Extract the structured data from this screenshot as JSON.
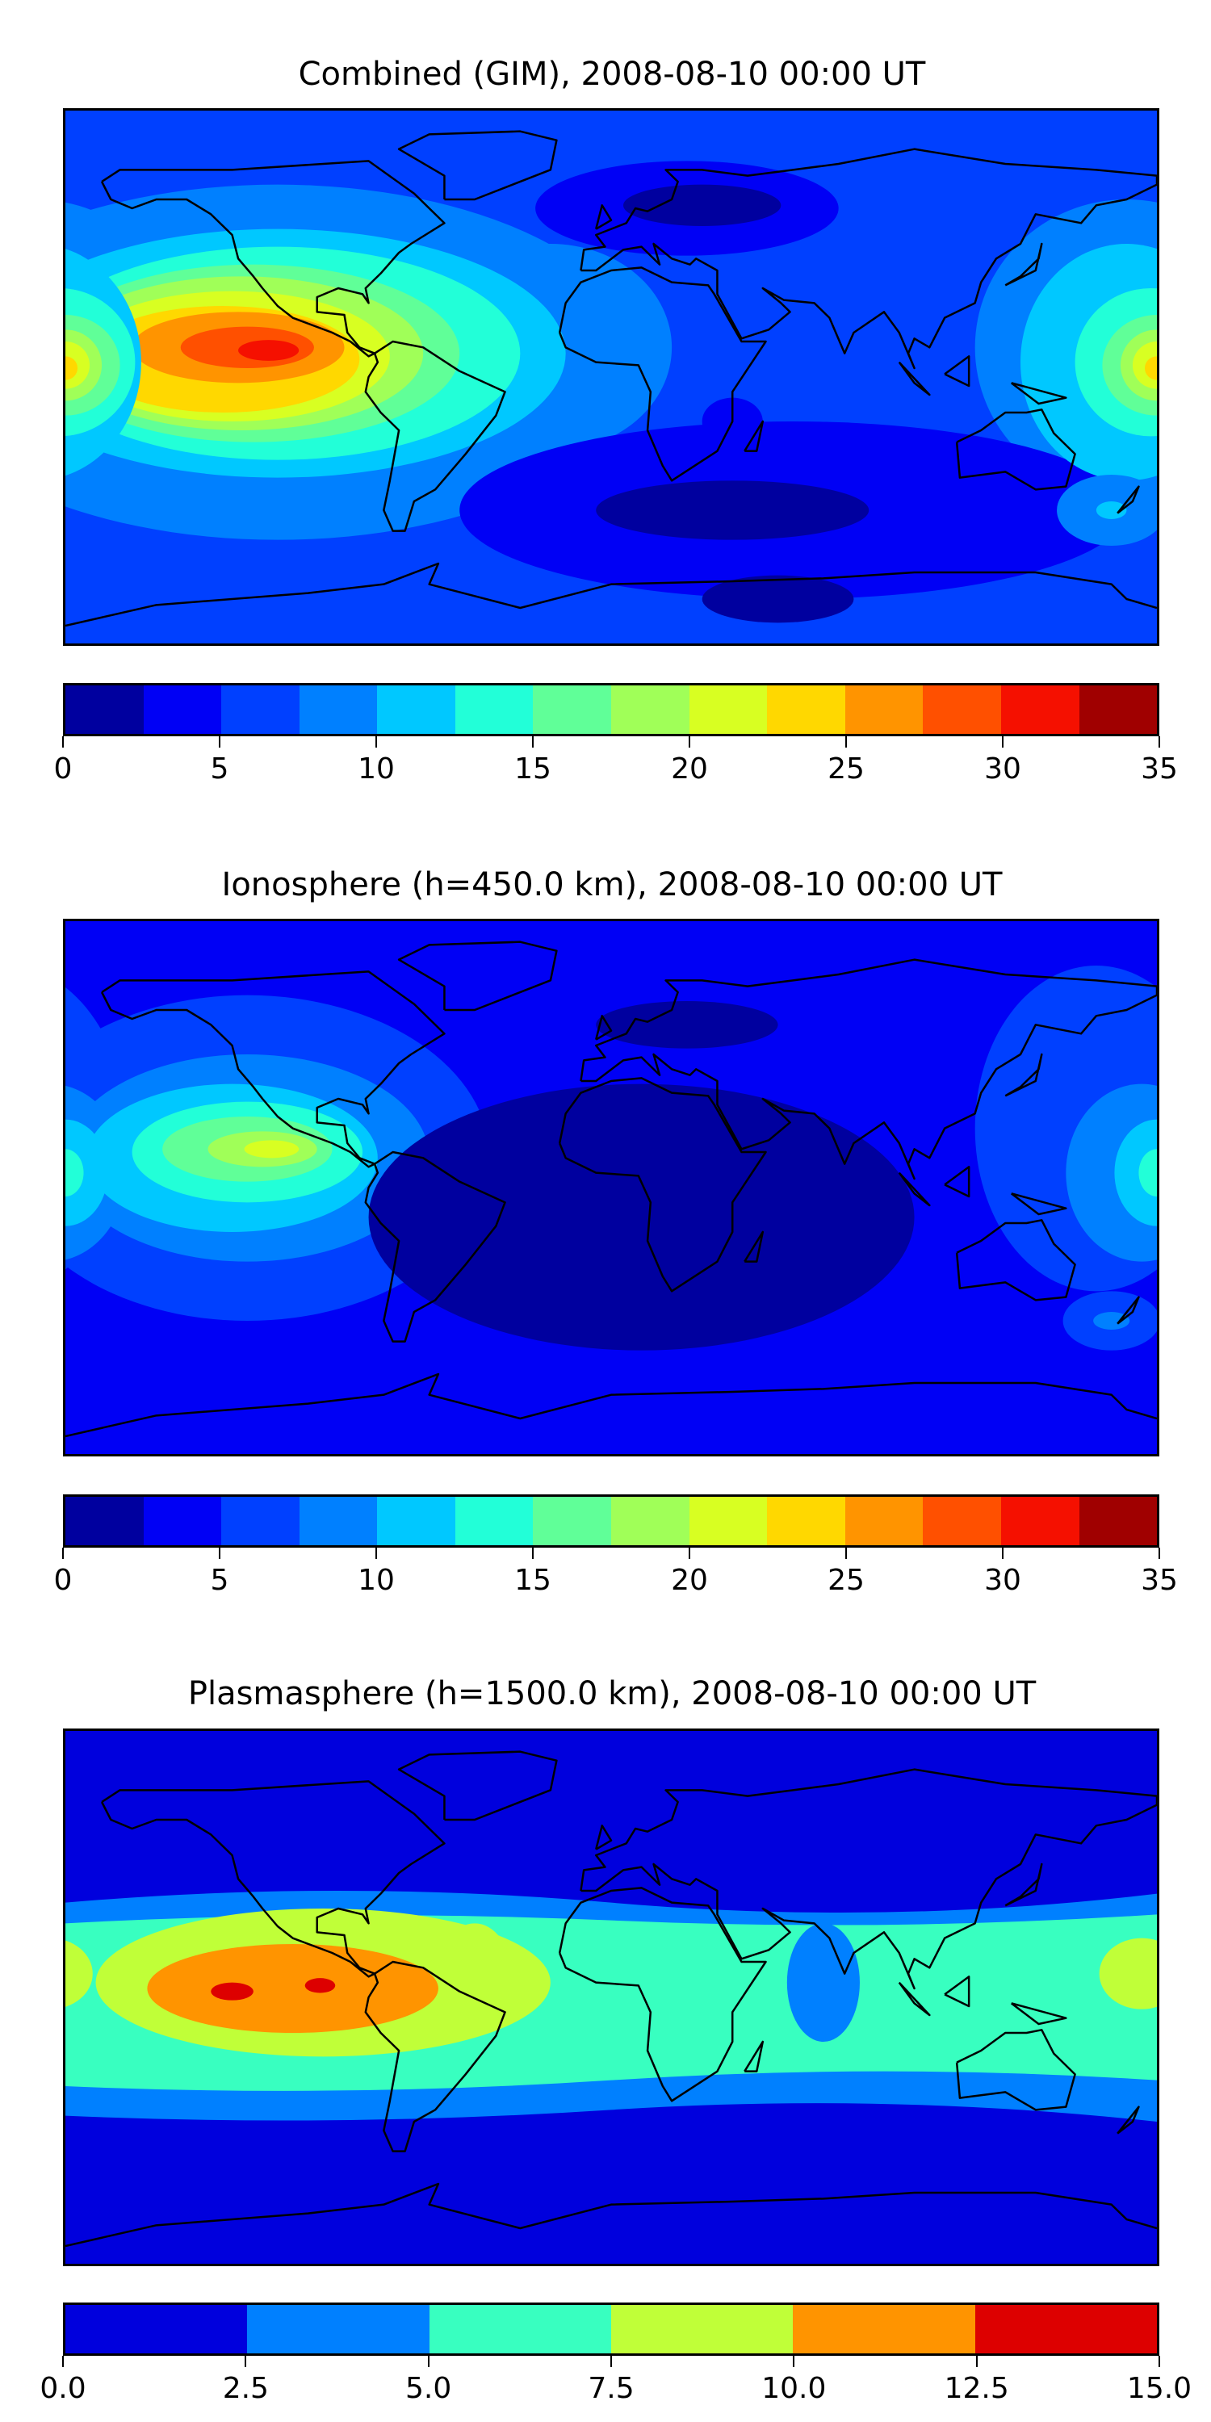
{
  "chart_data": [
    {
      "type": "heatmap",
      "title": "Combined (GIM), 2008-08-10 00:00 UT",
      "projection": "plate-carree world map with coastlines",
      "colorbar": {
        "levels": [
          0,
          2.5,
          5,
          7.5,
          10,
          12.5,
          15,
          17.5,
          20,
          22.5,
          25,
          27.5,
          30,
          32.5,
          35
        ],
        "colors": [
          "#00009f",
          "#0000f5",
          "#0040ff",
          "#0080ff",
          "#00c8ff",
          "#22ffd8",
          "#60ff98",
          "#a0ff58",
          "#d8ff22",
          "#ffd800",
          "#ff9400",
          "#ff5000",
          "#f51000",
          "#a00000"
        ],
        "tick_labels": [
          "0",
          "5",
          "10",
          "15",
          "20",
          "25",
          "30",
          "35"
        ],
        "range": [
          0,
          35
        ]
      },
      "features": [
        {
          "name": "eastern Pacific maximum",
          "lon": -113,
          "lat": 8,
          "value_range": "30-32.5"
        },
        {
          "name": "western Pacific maximum",
          "lon": 180,
          "lat": 3,
          "value_range": "22.5-25"
        },
        {
          "name": "northern Europe minimum",
          "lon": 25,
          "lat": 55,
          "value_range": "0-2.5"
        },
        {
          "name": "southern Indian Ocean minimum",
          "lon": 40,
          "lat": -45,
          "value_range": "0-2.5"
        }
      ]
    },
    {
      "type": "heatmap",
      "title": "Ionosphere  (h=450.0 km), 2008-08-10 00:00 UT",
      "projection": "plate-carree world map with coastlines",
      "colorbar": {
        "levels": [
          0,
          2.5,
          5,
          7.5,
          10,
          12.5,
          15,
          17.5,
          20,
          22.5,
          25,
          27.5,
          30,
          32.5,
          35
        ],
        "colors": [
          "#00009f",
          "#0000f5",
          "#0040ff",
          "#0080ff",
          "#00c8ff",
          "#22ffd8",
          "#60ff98",
          "#a0ff58",
          "#d8ff22",
          "#ffd800",
          "#ff9400",
          "#ff5000",
          "#f51000",
          "#a00000"
        ],
        "tick_labels": [
          "0",
          "5",
          "10",
          "15",
          "20",
          "25",
          "30",
          "35"
        ],
        "range": [
          0,
          35
        ]
      },
      "features": [
        {
          "name": "eastern Pacific maximum",
          "lon": -115,
          "lat": 12,
          "value_range": "20-22.5"
        },
        {
          "name": "western Pacific maximum",
          "lon": 180,
          "lat": 5,
          "value_range": "12.5-15"
        },
        {
          "name": "Atlantic/Africa minimum",
          "lon": 10,
          "lat": -15,
          "value_range": "0-2.5"
        }
      ]
    },
    {
      "type": "heatmap",
      "title": "Plasmasphere (h=1500.0 km), 2008-08-10 00:00 UT",
      "projection": "plate-carree world map with coastlines",
      "colorbar": {
        "levels": [
          0,
          2.5,
          5,
          7.5,
          10,
          12.5,
          15
        ],
        "colors": [
          "#0000dd",
          "#0080ff",
          "#38ffc0",
          "#c0ff38",
          "#ff9400",
          "#dd0000"
        ],
        "tick_labels": [
          "0.0",
          "2.5",
          "5.0",
          "7.5",
          "10.0",
          "12.5",
          "15.0"
        ],
        "range": [
          0,
          15
        ]
      },
      "features": [
        {
          "name": "South America/Pacific maximum",
          "lon": -110,
          "lat": 2,
          "value_range": "12.5-15"
        },
        {
          "name": "equatorial band",
          "lat_range": [
            -35,
            28
          ],
          "value_range": "5-7.5"
        }
      ]
    }
  ]
}
